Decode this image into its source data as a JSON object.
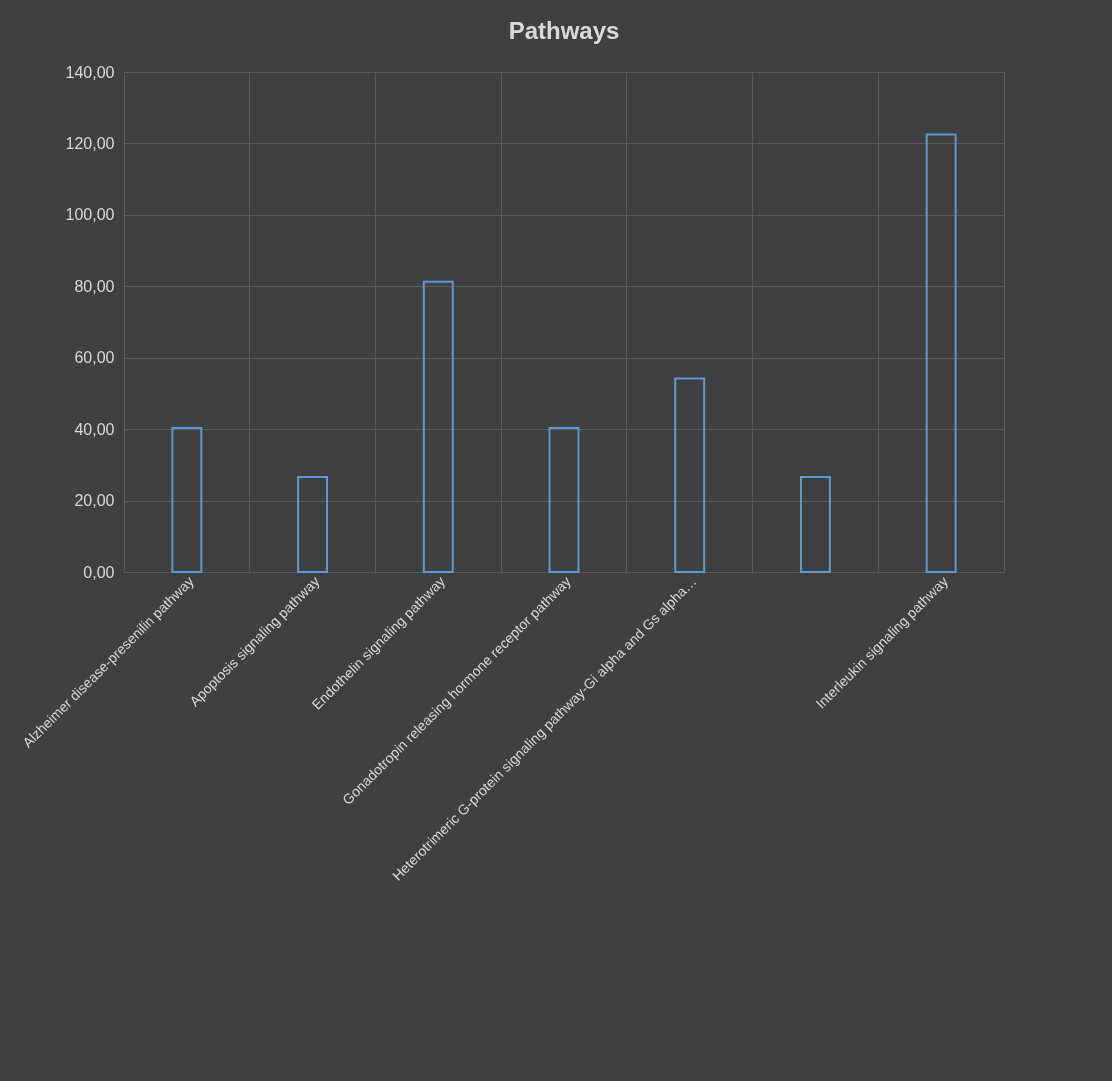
{
  "chart_data": {
    "type": "bar",
    "title": "Pathways",
    "categories": [
      "Alzheimer disease-presenilin pathway",
      "Apoptosis signaling pathway",
      "Endothelin signaling pathway",
      "Gonadotropin releasing hormone receptor pathway",
      "Heterotrimeric G-protein signaling pathway-Gi alpha and Gs alpha…",
      null,
      "Interleukin signaling pathway"
    ],
    "values": [
      40.3,
      26.6,
      81.3,
      40.3,
      54.2,
      26.6,
      122.5
    ],
    "color": "#5b9bd5",
    "ylim": [
      0,
      140
    ],
    "yticks": [
      {
        "value": 0,
        "label": "0,00"
      },
      {
        "value": 20,
        "label": "20,00"
      },
      {
        "value": 40,
        "label": "40,00"
      },
      {
        "value": 60,
        "label": "60,00"
      },
      {
        "value": 80,
        "label": "80,00"
      },
      {
        "value": 100,
        "label": "100,00"
      },
      {
        "value": 120,
        "label": "120,00"
      },
      {
        "value": 140,
        "label": "140,00"
      }
    ],
    "grid": true
  }
}
